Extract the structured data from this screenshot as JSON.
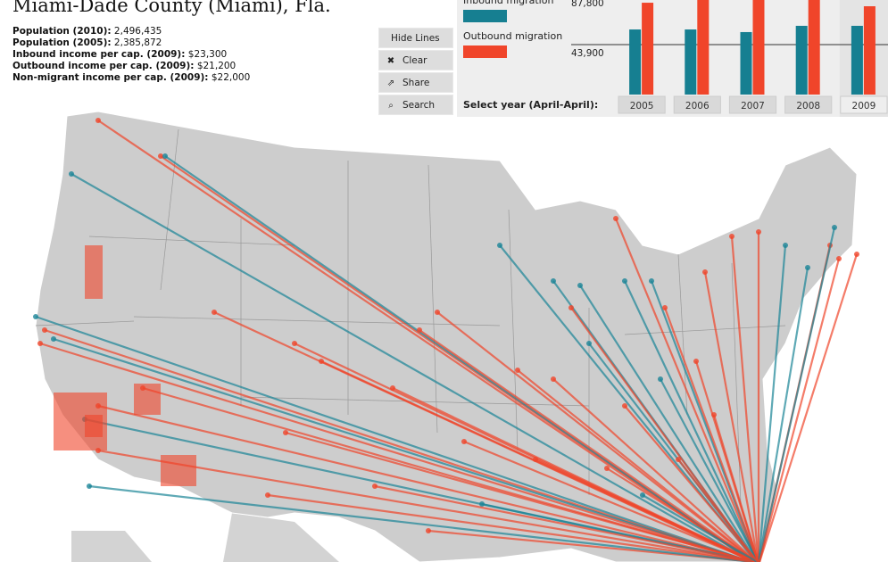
{
  "header": {
    "title": "Miami-Dade County (Miami), Fla.",
    "stats": [
      {
        "label": "Population (2010):",
        "value": "2,496,435"
      },
      {
        "label": "Population (2005):",
        "value": "2,385,872"
      },
      {
        "label": "Inbound income per cap. (2009):",
        "value": "$23,300"
      },
      {
        "label": "Outbound income per cap. (2009):",
        "value": "$21,200"
      },
      {
        "label": "Non-migrant income per cap. (2009):",
        "value": "$22,000"
      }
    ]
  },
  "buttons": [
    "Hide Lines",
    "Clear",
    "Share",
    "Search"
  ],
  "year_selector_label": "Select year (April-April):",
  "chart_data": {
    "type": "bar",
    "categories": [
      "2005",
      "2006",
      "2007",
      "2008",
      "2009"
    ],
    "series": [
      {
        "name": "Inbound migration",
        "color": "#167f91",
        "values": [
          57200,
          57200,
          54900,
          60400,
          60400
        ]
      },
      {
        "name": "Outbound migration",
        "color": "#f0452a",
        "values": [
          80700,
          83100,
          87000,
          89000,
          77600
        ]
      }
    ],
    "ylim": [
      0,
      87800
    ],
    "yticks": [
      {
        "value": 87800,
        "label": "87,800"
      },
      {
        "value": 43900,
        "label": "43,900"
      }
    ],
    "selected": "2009"
  }
}
